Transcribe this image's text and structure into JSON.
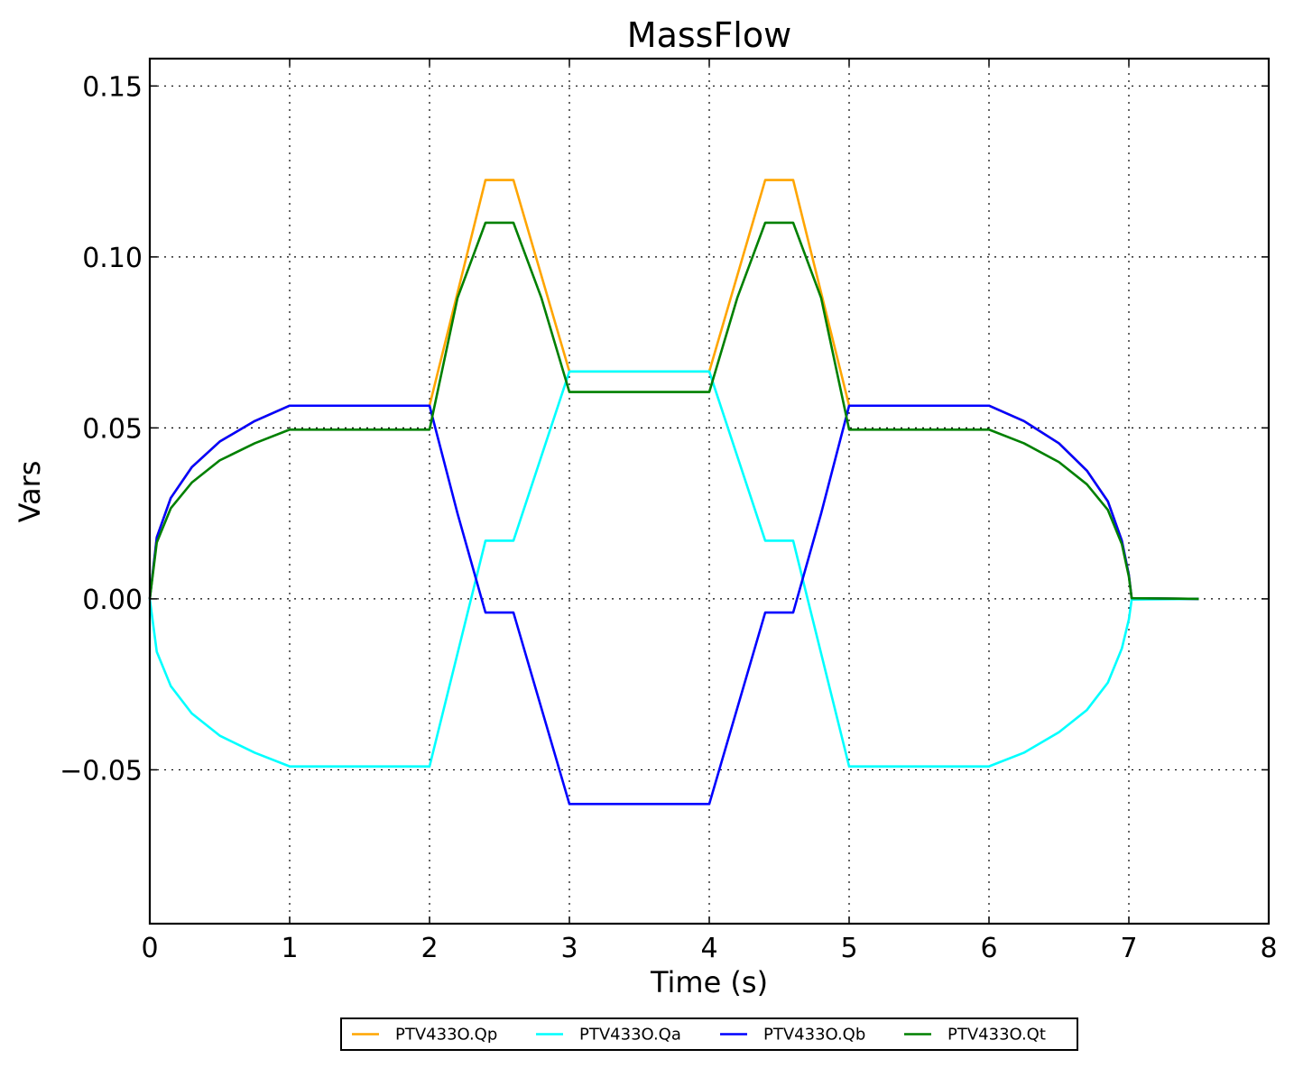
{
  "chart_data": {
    "type": "line",
    "title": "MassFlow",
    "xlabel": "Time (s)",
    "ylabel": "Vars",
    "xlim": [
      0,
      8
    ],
    "ylim": [
      -0.095,
      0.158
    ],
    "xticks": [
      0,
      1,
      2,
      3,
      4,
      5,
      6,
      7,
      8
    ],
    "xtick_labels": [
      "0",
      "1",
      "2",
      "3",
      "4",
      "5",
      "6",
      "7",
      "8"
    ],
    "yticks": [
      -0.05,
      0.0,
      0.05,
      0.1,
      0.15
    ],
    "ytick_labels": [
      "−0.05",
      "0.00",
      "0.05",
      "0.10",
      "0.15"
    ],
    "grid": true,
    "legend_position": "bottom-center",
    "series": [
      {
        "name": "PTV433O.Qp",
        "color": "#ffa500",
        "x": [
          0,
          0.05,
          0.15,
          0.3,
          0.5,
          0.75,
          1.0,
          2.0,
          2.4,
          2.6,
          3.0,
          4.0,
          4.4,
          4.6,
          5.0,
          6.0,
          6.25,
          6.5,
          6.7,
          6.85,
          6.95,
          7.0,
          7.02,
          7.5
        ],
        "y": [
          0,
          0.018,
          0.0295,
          0.0385,
          0.046,
          0.052,
          0.0565,
          0.0565,
          0.1225,
          0.1225,
          0.0665,
          0.0665,
          0.1225,
          0.1225,
          0.0565,
          0.0565,
          0.052,
          0.0455,
          0.0375,
          0.0285,
          0.017,
          0.007,
          0.0002,
          0
        ]
      },
      {
        "name": "PTV433O.Qa",
        "color": "#00ffff",
        "x": [
          0,
          0.05,
          0.15,
          0.3,
          0.5,
          0.75,
          1.0,
          2.0,
          2.4,
          2.6,
          3.0,
          4.0,
          4.4,
          4.6,
          5.0,
          6.0,
          6.25,
          6.5,
          6.7,
          6.85,
          6.95,
          7.0,
          7.02,
          7.5
        ],
        "y": [
          0,
          -0.0155,
          -0.0255,
          -0.0335,
          -0.04,
          -0.045,
          -0.049,
          -0.049,
          0.017,
          0.017,
          0.0665,
          0.0665,
          0.017,
          0.017,
          -0.049,
          -0.049,
          -0.045,
          -0.039,
          -0.0325,
          -0.0245,
          -0.0145,
          -0.006,
          -0.0002,
          0
        ]
      },
      {
        "name": "PTV433O.Qb",
        "color": "#0000ff",
        "x": [
          0,
          0.05,
          0.15,
          0.3,
          0.5,
          0.75,
          1.0,
          2.0,
          2.2,
          2.4,
          2.6,
          3.0,
          4.0,
          4.4,
          4.6,
          4.8,
          5.0,
          6.0,
          6.25,
          6.5,
          6.7,
          6.85,
          6.95,
          7.0,
          7.02,
          7.5
        ],
        "y": [
          0,
          0.018,
          0.0295,
          0.0385,
          0.046,
          0.052,
          0.0565,
          0.0565,
          0.025,
          -0.004,
          -0.004,
          -0.06,
          -0.06,
          -0.004,
          -0.004,
          0.025,
          0.0565,
          0.0565,
          0.052,
          0.0455,
          0.0375,
          0.0285,
          0.017,
          0.007,
          0.0002,
          0
        ]
      },
      {
        "name": "PTV433O.Qt",
        "color": "#008000",
        "x": [
          0,
          0.05,
          0.15,
          0.3,
          0.5,
          0.75,
          1.0,
          2.0,
          2.2,
          2.4,
          2.6,
          2.8,
          3.0,
          4.0,
          4.2,
          4.4,
          4.6,
          4.8,
          5.0,
          6.0,
          6.25,
          6.5,
          6.7,
          6.85,
          6.95,
          7.0,
          7.02,
          7.5
        ],
        "y": [
          0,
          0.0165,
          0.0265,
          0.034,
          0.0405,
          0.0455,
          0.0495,
          0.0495,
          0.088,
          0.11,
          0.11,
          0.088,
          0.0605,
          0.0605,
          0.088,
          0.11,
          0.11,
          0.088,
          0.0495,
          0.0495,
          0.0455,
          0.04,
          0.0335,
          0.026,
          0.016,
          0.0065,
          0.0002,
          0
        ]
      }
    ]
  }
}
